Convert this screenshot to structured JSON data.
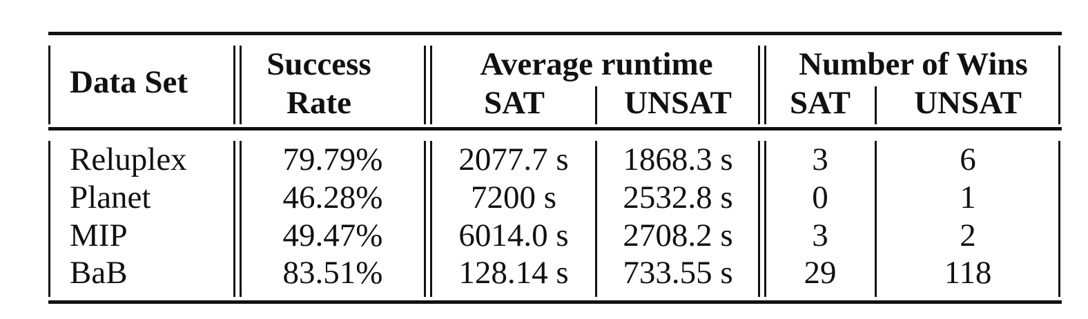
{
  "table": {
    "headers": {
      "dataset": "Data Set",
      "success_line1": "Success",
      "success_line2": "Rate",
      "avg_runtime": "Average runtime",
      "avg_sat": "SAT",
      "avg_unsat": "UNSAT",
      "wins": "Number of Wins",
      "wins_sat": "SAT",
      "wins_unsat": "UNSAT"
    },
    "rows": [
      {
        "dataset": "Reluplex",
        "success": "79.79%",
        "avg_sat": "2077.7 s",
        "avg_unsat": "1868.3 s",
        "wins_sat": "3",
        "wins_unsat": "6"
      },
      {
        "dataset": "Planet",
        "success": "46.28%",
        "avg_sat": "7200 s",
        "avg_unsat": "2532.8 s",
        "wins_sat": "0",
        "wins_unsat": "1"
      },
      {
        "dataset": "MIP",
        "success": "49.47%",
        "avg_sat": "6014.0 s",
        "avg_unsat": "2708.2 s",
        "wins_sat": "3",
        "wins_unsat": "2"
      },
      {
        "dataset": "BaB",
        "success": "83.51%",
        "avg_sat": "128.14 s",
        "avg_unsat": "733.55 s",
        "wins_sat": "29",
        "wins_unsat": "118"
      }
    ]
  }
}
